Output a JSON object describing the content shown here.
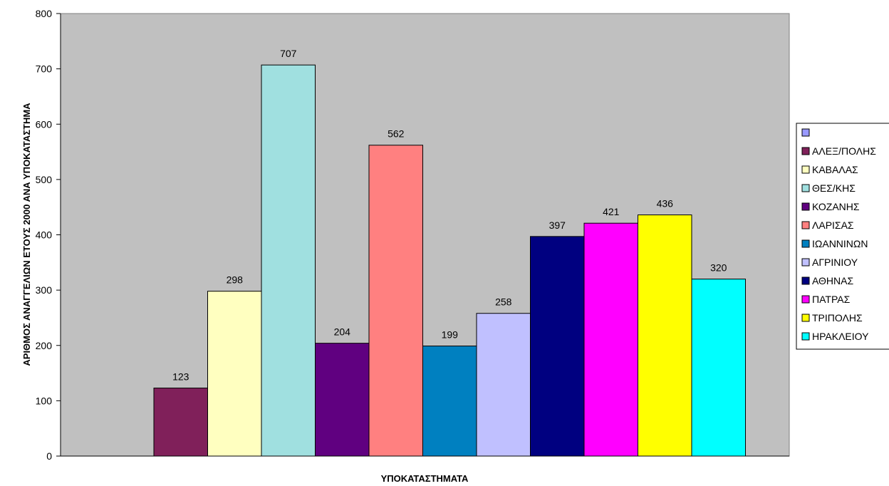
{
  "chart_data": {
    "type": "bar",
    "title": "",
    "xlabel": "ΥΠΟΚΑΤΑΣΤΗΜΑΤΑ",
    "ylabel": "ΑΡΙΘΜΟΣ ΑΝΑΓΓΕΛΙΩΝ ΕΤΟΥΣ 2000 ΑΝΑ ΥΠΟΚΑΤΑΣΤΗΜΑ",
    "ylim": [
      0,
      800
    ],
    "yticks": [
      0,
      100,
      200,
      300,
      400,
      500,
      600,
      700,
      800
    ],
    "grid": false,
    "legend_position": "right",
    "plot_background": "#c0c0c0",
    "series": [
      {
        "name": "",
        "value": null,
        "color": "#9999ff"
      },
      {
        "name": "ΑΛΕΞ/ΠΟΛΗΣ",
        "value": 123,
        "color": "#80205a"
      },
      {
        "name": "ΚΑΒΑΛΑΣ",
        "value": 298,
        "color": "#ffffc0"
      },
      {
        "name": "ΘΕΣ/ΚΗΣ",
        "value": 707,
        "color": "#a0e0e0"
      },
      {
        "name": "ΚΟΖΑΝΗΣ",
        "value": 204,
        "color": "#600080"
      },
      {
        "name": "ΛΑΡΙΣΑΣ",
        "value": 562,
        "color": "#ff8080"
      },
      {
        "name": "ΙΩΑΝΝΙΝΩΝ",
        "value": 199,
        "color": "#0080c0"
      },
      {
        "name": "ΑΓΡΙΝΙΟΥ",
        "value": 258,
        "color": "#c0c0ff"
      },
      {
        "name": "ΑΘΗΝΑΣ",
        "value": 397,
        "color": "#000080"
      },
      {
        "name": "ΠΑΤΡΑΣ",
        "value": 421,
        "color": "#ff00ff"
      },
      {
        "name": "ΤΡΙΠΟΛΗΣ",
        "value": 436,
        "color": "#ffff00"
      },
      {
        "name": "ΗΡΑΚΛΕΙΟΥ",
        "value": 320,
        "color": "#00ffff"
      }
    ]
  }
}
